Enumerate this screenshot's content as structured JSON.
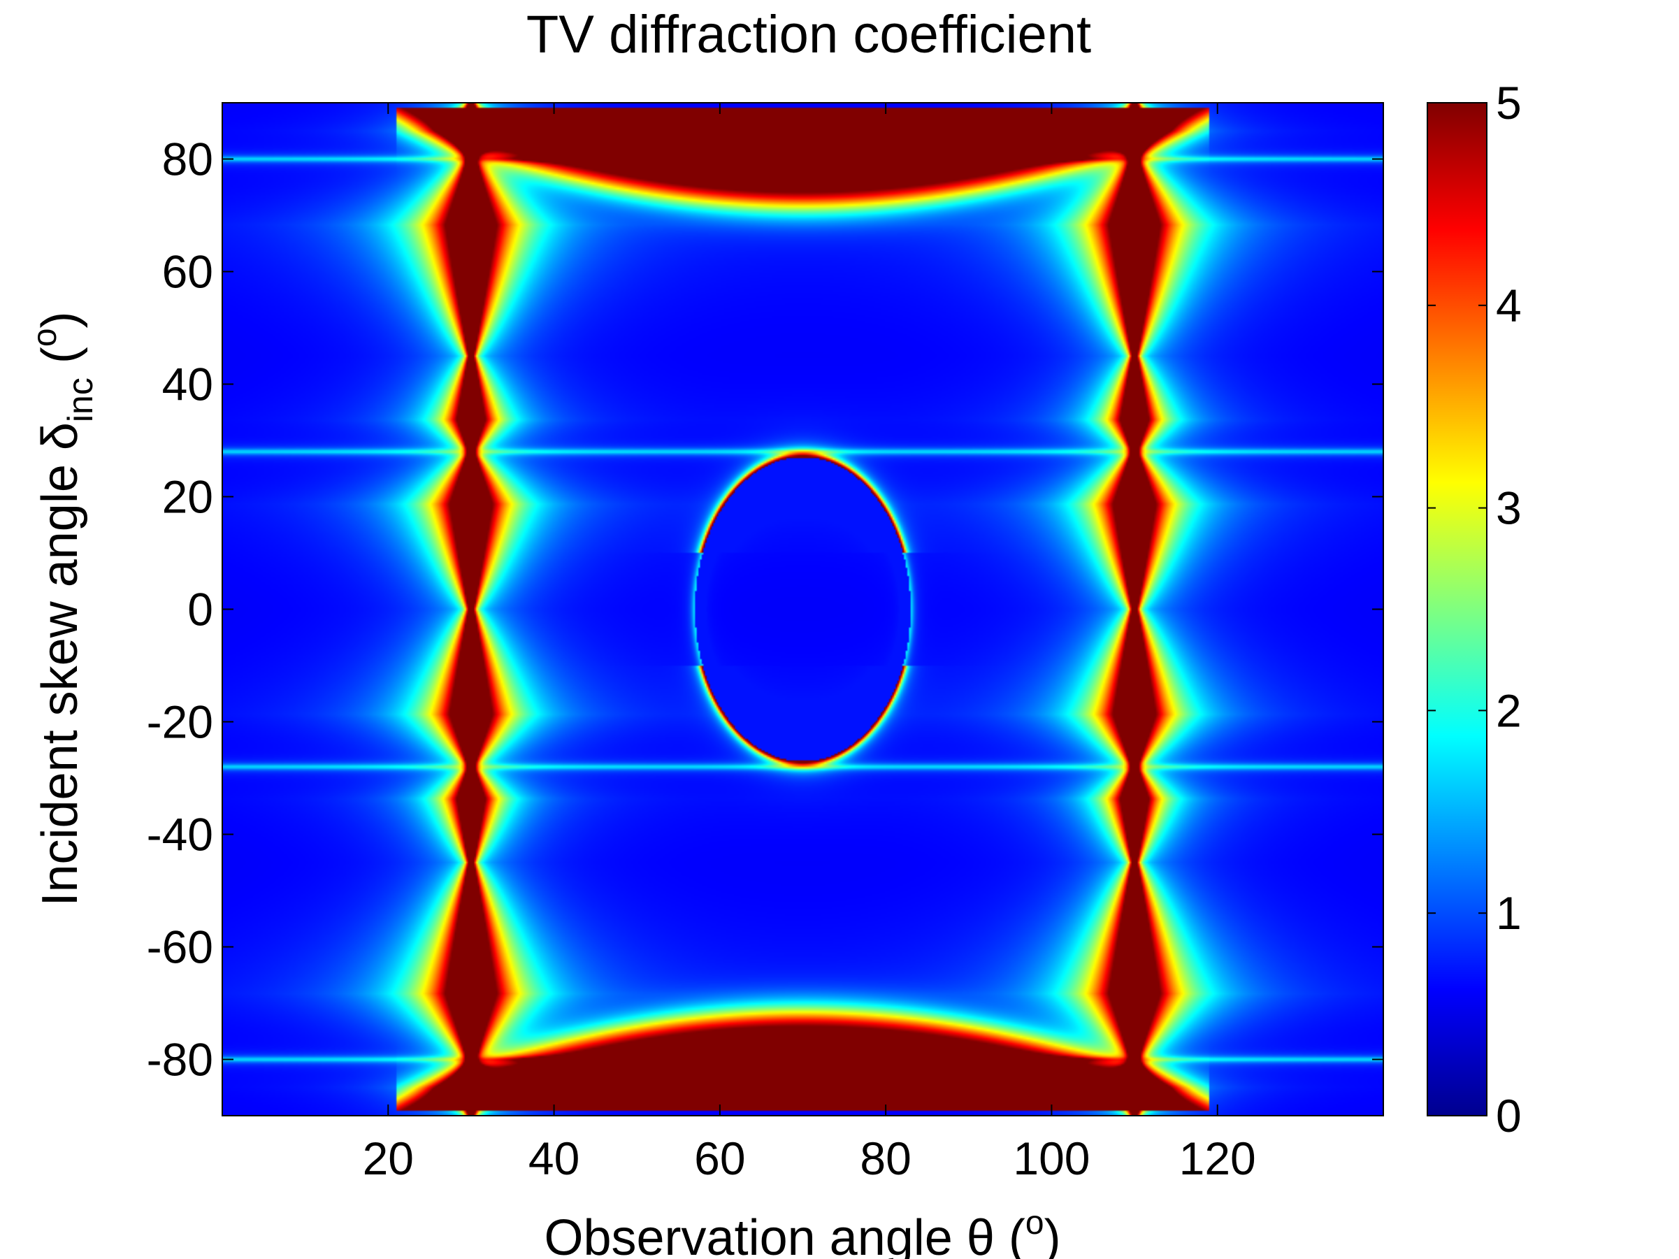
{
  "chart_data": {
    "type": "heatmap",
    "title": "TV diffraction coefficient",
    "xlabel": {
      "text": "Observation angle ",
      "symbol": "θ",
      "unit_open": " (",
      "unit_sup": "o",
      "unit_close": ")"
    },
    "ylabel": {
      "text": "Incident skew angle ",
      "symbol": "δ",
      "symbol_sub": "inc",
      "unit_open": " (",
      "unit_sup": "o",
      "unit_close": ")"
    },
    "xlim": [
      0,
      140
    ],
    "ylim": [
      -90,
      90
    ],
    "xticks": [
      20,
      40,
      60,
      80,
      100,
      120
    ],
    "xtick_labels": [
      "20",
      "40",
      "60",
      "80",
      "100",
      "120"
    ],
    "yticks": [
      80,
      60,
      40,
      20,
      0,
      -20,
      -40,
      -60,
      -80
    ],
    "ytick_labels": [
      "80",
      "60",
      "40",
      "20",
      "0",
      "-20",
      "-40",
      "-60",
      "-80"
    ],
    "colorbar": {
      "colormap": "jet",
      "range": [
        0,
        5
      ],
      "ticks": [
        0,
        1,
        2,
        3,
        4,
        5
      ],
      "tick_labels": [
        "0",
        "1",
        "2",
        "3",
        "4",
        "5"
      ]
    },
    "features": {
      "vertical_singular_lines_x": [
        30,
        110
      ],
      "horizontal_lines_y": [
        80,
        28,
        -28,
        -80
      ],
      "saturated_bands": [
        {
          "x": [
            31,
            109
          ],
          "y": [
            80,
            88
          ]
        },
        {
          "x": [
            31,
            109
          ],
          "y": [
            -88,
            -80
          ]
        }
      ],
      "ellipse": {
        "center": [
          70,
          0
        ],
        "half_width_x": 13,
        "half_height_y": 27
      }
    }
  }
}
